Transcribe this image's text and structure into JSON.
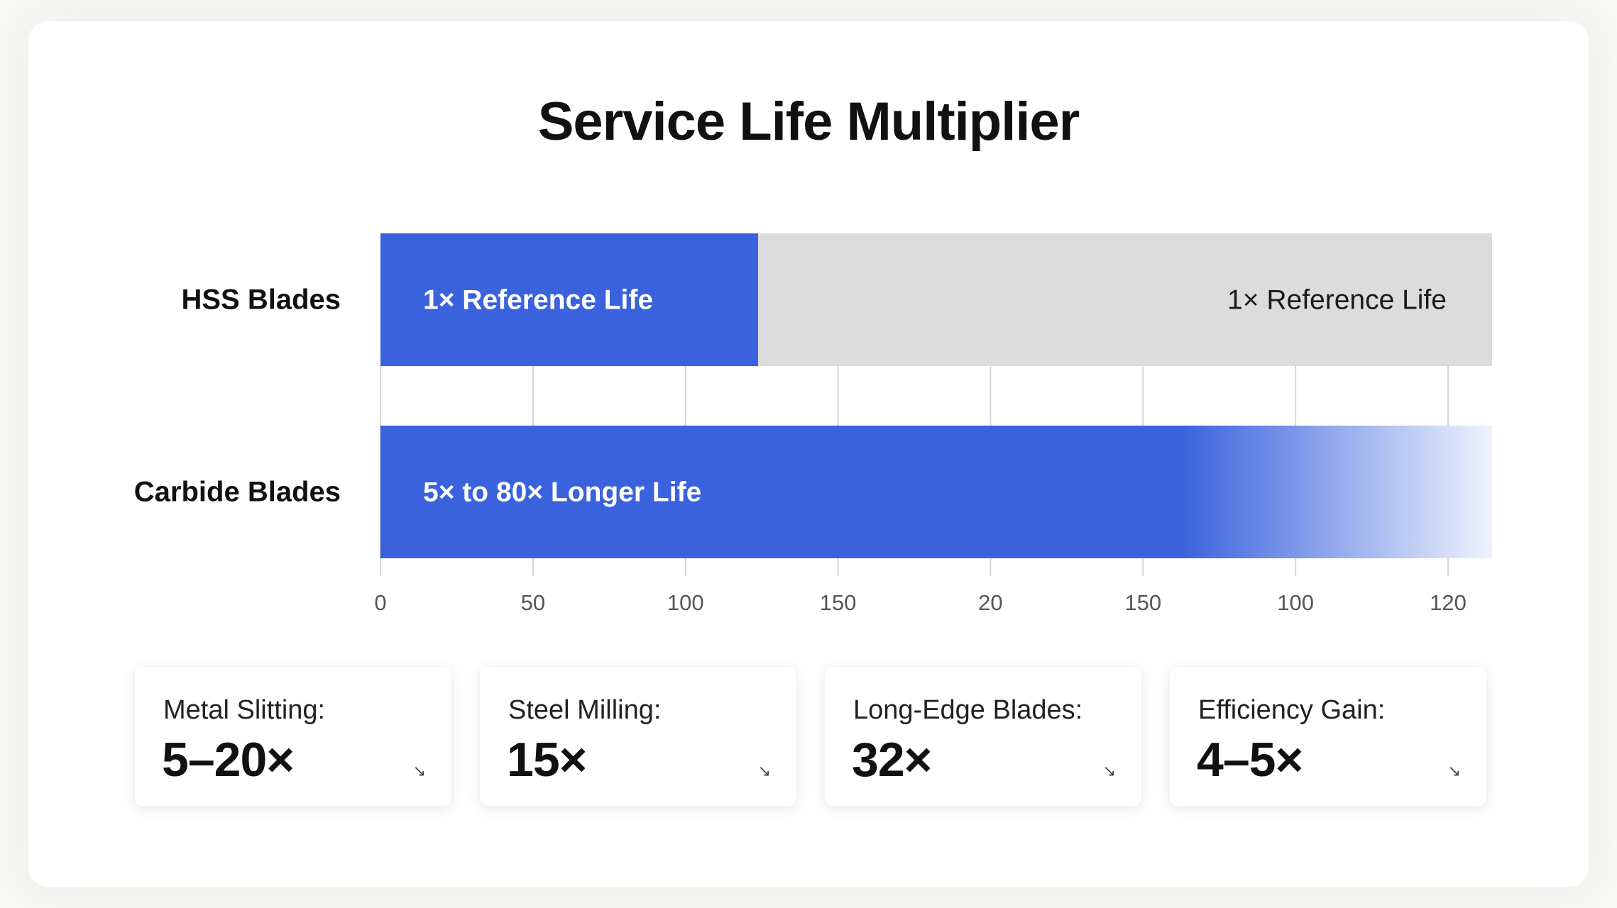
{
  "chart_data": {
    "type": "bar",
    "orientation": "horizontal",
    "title": "Service Life Multiplier",
    "categories": [
      "HSS Blades",
      "Carbide Blades"
    ],
    "series": [
      {
        "values": [
          1,
          80
        ],
        "labels": [
          "1× Reference Life",
          "5× to 80× Longer Life"
        ],
        "color": "#3a62dd"
      }
    ],
    "background_bar": {
      "category": "HSS Blades",
      "label": "1× Reference Life",
      "color": "#dcdcdc"
    },
    "x_tick_labels": [
      "0",
      "50",
      "100",
      "150",
      "20",
      "150",
      "100",
      "120"
    ],
    "grid": true,
    "colors": {
      "bar": "#3a62dd",
      "bar_fade": "#eef3fd",
      "track": "#dcdcdc",
      "grid": "#d6d6d6"
    }
  },
  "cards": [
    {
      "label": "Metal Slitting:",
      "value": "5–20×",
      "icon": "arrow-down-right-icon"
    },
    {
      "label": "Steel Milling:",
      "value": "15×",
      "icon": "arrow-down-right-icon"
    },
    {
      "label": "Long-Edge Blades:",
      "value": "32×",
      "icon": "arrow-down-right-icon"
    },
    {
      "label": "Efficiency Gain:",
      "value": "4–5×",
      "icon": "arrow-down-right-icon"
    }
  ]
}
